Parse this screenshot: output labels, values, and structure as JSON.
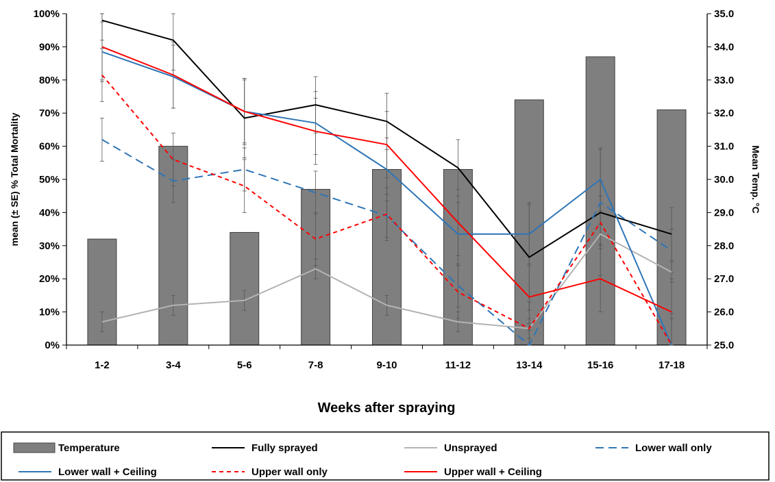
{
  "chart_data": {
    "type": "bar",
    "categories": [
      "1-2",
      "3-4",
      "5-6",
      "7-8",
      "9-10",
      "11-12",
      "13-14",
      "15-16",
      "17-18"
    ],
    "xlabel": "Weeks after spraying",
    "ylabel": "mean (± SE)  % Total Mortality",
    "y2label": "Mean Temp. °C",
    "ylim": [
      0,
      100
    ],
    "y2lim": [
      25.0,
      35.0
    ],
    "y_ticks": [
      "0%",
      "10%",
      "20%",
      "30%",
      "40%",
      "50%",
      "60%",
      "70%",
      "80%",
      "90%",
      "100%"
    ],
    "y2_ticks": [
      "25.0",
      "26.0",
      "27.0",
      "28.0",
      "29.0",
      "30.0",
      "31.0",
      "32.0",
      "33.0",
      "34.0",
      "35.0"
    ],
    "grid": false,
    "legend_position": "bottom",
    "bars": {
      "name": "Temperature",
      "axis": "right",
      "color": "#7f7f7f",
      "values": [
        28.2,
        31.0,
        28.4,
        29.7,
        30.3,
        30.3,
        32.4,
        33.7,
        32.1
      ]
    },
    "series": [
      {
        "name": "Fully sprayed",
        "color": "#000000",
        "dash": "solid",
        "values": [
          98,
          92,
          68.5,
          72.5,
          67.5,
          53.5,
          26.5,
          40,
          33.5
        ],
        "errors": [
          6,
          9,
          12,
          8.5,
          8.5,
          8.5,
          16,
          19,
          8
        ]
      },
      {
        "name": "Unsprayed",
        "color": "#b3b3b3",
        "dash": "solid",
        "values": [
          7,
          12,
          13.5,
          23,
          12,
          7,
          5,
          33.5,
          22
        ],
        "errors": [
          3,
          3,
          3,
          3,
          3,
          3,
          3,
          3,
          3
        ]
      },
      {
        "name": "Lower wall only",
        "color": "#2e75b6",
        "dash": "long",
        "values": [
          62,
          49.5,
          53,
          46,
          39,
          18,
          0,
          43,
          28.5
        ],
        "errors": [
          6.5,
          6.5,
          6.5,
          6.5,
          6.5,
          6.5,
          6.5,
          6.5,
          6.5
        ]
      },
      {
        "name": "Lower wall + Ceiling",
        "color": "#2e75b6",
        "dash": "solid",
        "values": [
          88.5,
          81,
          70.5,
          67,
          53,
          33.5,
          33.5,
          50,
          0
        ],
        "errors": [
          9,
          9.5,
          9.5,
          9.5,
          9.5,
          9.5,
          9.5,
          9.5,
          9.5
        ]
      },
      {
        "name": "Upper wall only",
        "color": "#ff0000",
        "dash": "short",
        "values": [
          81.5,
          56,
          48,
          32,
          39.5,
          16,
          5,
          37,
          0
        ],
        "errors": [
          8,
          8,
          8,
          8,
          8,
          8,
          8,
          8,
          8
        ]
      },
      {
        "name": "Upper wall + Ceiling",
        "color": "#ff0000",
        "dash": "solid",
        "values": [
          90,
          81.5,
          70.5,
          64.5,
          60.5,
          37,
          14.5,
          20,
          10
        ],
        "errors": [
          10,
          10,
          10,
          10,
          10,
          10,
          10,
          10,
          10
        ]
      }
    ]
  }
}
